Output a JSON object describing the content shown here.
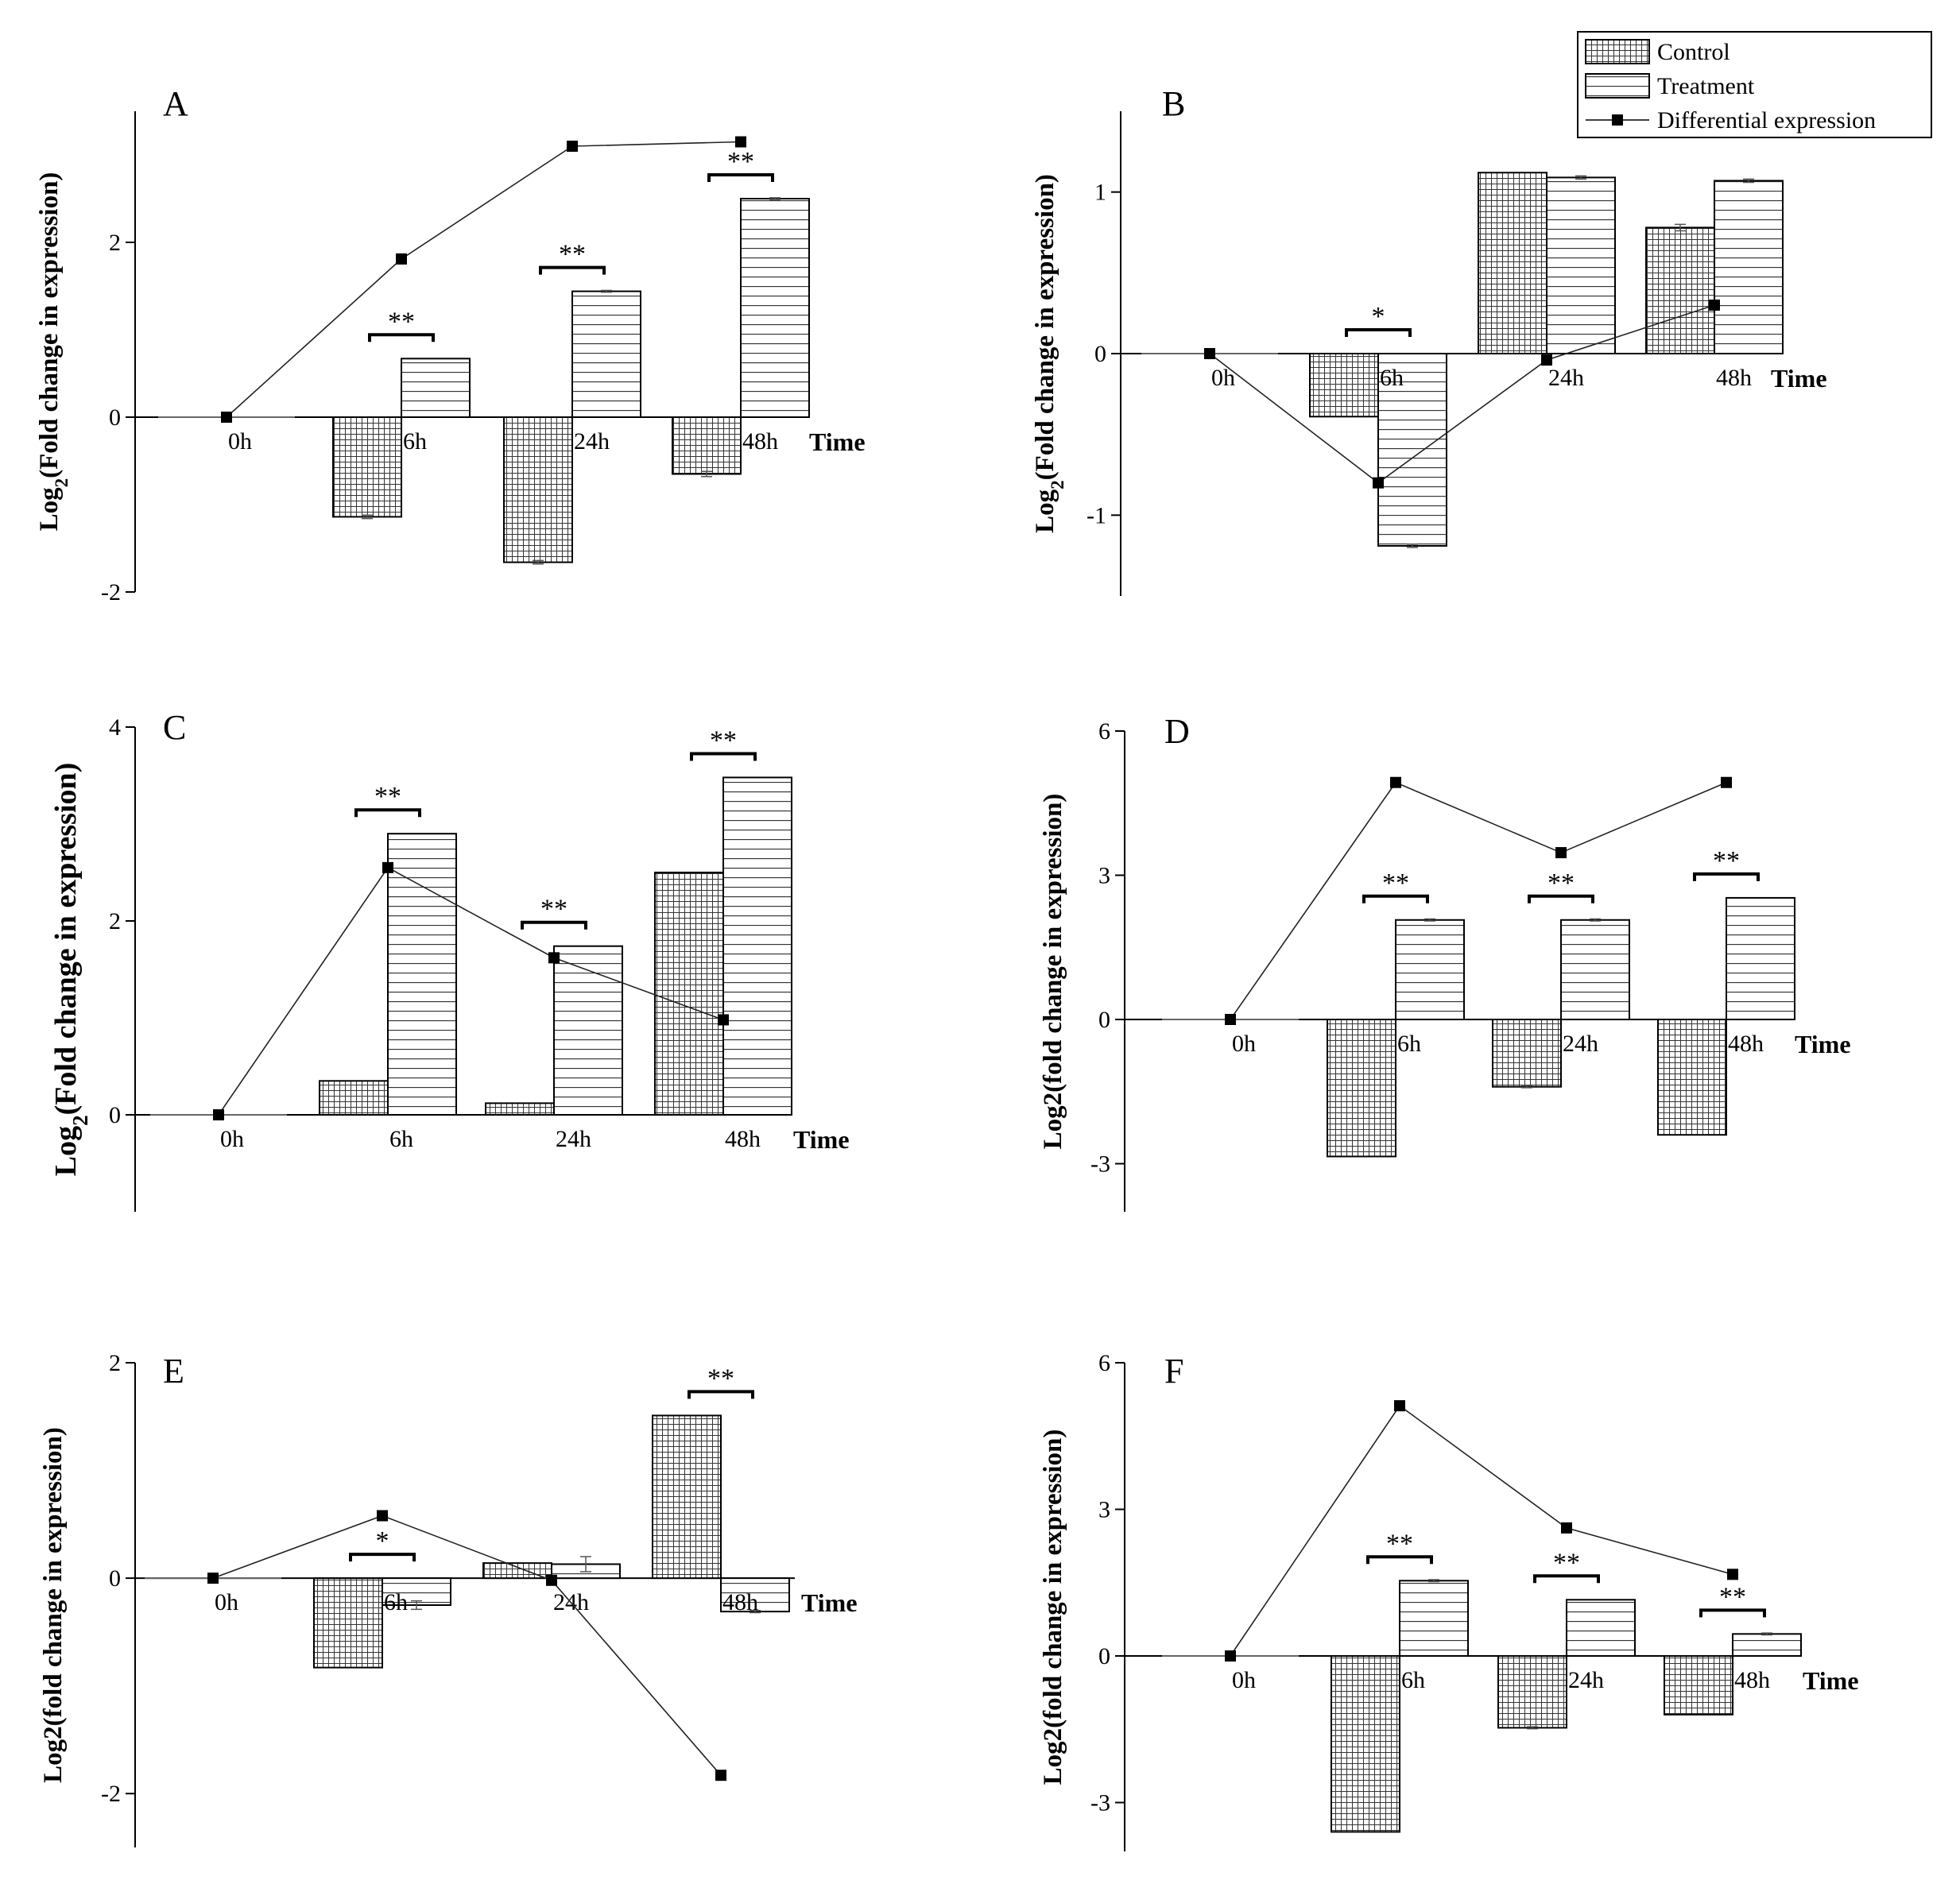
{
  "legend": {
    "items": [
      {
        "label": "Control",
        "kind": "grid-bar"
      },
      {
        "label": "Treatment",
        "kind": "hline-bar"
      },
      {
        "label": "Differential expression",
        "kind": "line-marker"
      }
    ]
  },
  "chart_data": [
    {
      "type": "bar",
      "panel": "A",
      "ylabel_main": "Log",
      "ylabel_sub": "2",
      "ylabel_rest": "(Fold change in expression)",
      "xlabel": "Time",
      "categories": [
        "0h",
        "6h",
        "24h",
        "48h"
      ],
      "ylim": [
        -2,
        3.5
      ],
      "yticks": [
        -2,
        0,
        2
      ],
      "series": [
        {
          "name": "Control",
          "values": [
            0,
            -1.14,
            -1.66,
            -0.65
          ],
          "errors": [
            0,
            0.02,
            0.02,
            0.03
          ]
        },
        {
          "name": "Treatment",
          "values": [
            0,
            0.67,
            1.44,
            2.5
          ],
          "errors": [
            0,
            0,
            0.01,
            0.01
          ]
        },
        {
          "name": "Differential expression",
          "values": [
            0,
            1.81,
            3.1,
            3.15
          ]
        }
      ],
      "significance": [
        "",
        "**",
        "**",
        "**"
      ]
    },
    {
      "type": "bar",
      "panel": "B",
      "ylabel_main": "Log",
      "ylabel_sub": "2",
      "ylabel_rest": "(Fold change in expression)",
      "xlabel": "Time",
      "categories": [
        "0h",
        "6h",
        "24h",
        "48h"
      ],
      "ylim": [
        -1.5,
        1.5
      ],
      "yticks": [
        -1,
        0,
        1
      ],
      "series": [
        {
          "name": "Control",
          "values": [
            0,
            -0.39,
            1.12,
            0.78
          ],
          "errors": [
            0,
            0,
            0,
            0.02
          ]
        },
        {
          "name": "Treatment",
          "values": [
            0,
            -1.19,
            1.09,
            1.07
          ],
          "errors": [
            0,
            0.01,
            0.01,
            0.01
          ]
        },
        {
          "name": "Differential expression",
          "values": [
            0,
            -0.8,
            -0.04,
            0.3
          ]
        }
      ],
      "significance": [
        "",
        "*",
        "",
        ""
      ]
    },
    {
      "type": "bar",
      "panel": "C",
      "ylabel_main": "Log",
      "ylabel_sub": "2",
      "ylabel_rest": "(Fold change in expression)",
      "xlabel": "Time",
      "categories": [
        "0h",
        "6h",
        "24h",
        "48h"
      ],
      "ylim": [
        -1,
        4
      ],
      "yticks": [
        0,
        2,
        4
      ],
      "series": [
        {
          "name": "Control",
          "values": [
            0,
            0.35,
            0.12,
            2.5
          ],
          "errors": [
            0,
            0,
            0,
            0
          ]
        },
        {
          "name": "Treatment",
          "values": [
            0,
            2.9,
            1.74,
            3.48
          ],
          "errors": [
            0,
            0,
            0,
            0
          ]
        },
        {
          "name": "Differential expression",
          "values": [
            0,
            2.55,
            1.62,
            0.98
          ]
        }
      ],
      "significance": [
        "",
        "**",
        "**",
        "**"
      ]
    },
    {
      "type": "bar",
      "panel": "D",
      "ylabel_main": "Log2(fold change in expression)",
      "ylabel_sub": "",
      "ylabel_rest": "",
      "xlabel": "Time",
      "categories": [
        "0h",
        "6h",
        "24h",
        "48h"
      ],
      "ylim": [
        -4,
        6
      ],
      "yticks": [
        -3,
        0,
        3,
        6
      ],
      "series": [
        {
          "name": "Control",
          "values": [
            0,
            -2.85,
            -1.4,
            -2.4
          ],
          "errors": [
            0,
            0,
            0.02,
            0
          ]
        },
        {
          "name": "Treatment",
          "values": [
            0,
            2.07,
            2.07,
            2.53
          ],
          "errors": [
            0,
            0.02,
            0.02,
            0
          ]
        },
        {
          "name": "Differential expression",
          "values": [
            0,
            4.93,
            3.47,
            4.93
          ]
        }
      ],
      "significance": [
        "",
        "**",
        "**",
        "**"
      ]
    },
    {
      "type": "bar",
      "panel": "E",
      "ylabel_main": "Log2(fold change in expression)",
      "ylabel_sub": "",
      "ylabel_rest": "",
      "xlabel": "Time",
      "categories": [
        "0h",
        "6h",
        "24h",
        "48h"
      ],
      "ylim": [
        -2.5,
        2
      ],
      "yticks": [
        -2,
        0,
        2
      ],
      "series": [
        {
          "name": "Control",
          "values": [
            0,
            -0.83,
            0.14,
            1.51
          ],
          "errors": [
            0,
            0,
            0,
            0
          ]
        },
        {
          "name": "Treatment",
          "values": [
            0,
            -0.25,
            0.13,
            -0.31
          ],
          "errors": [
            0,
            0.04,
            0.07,
            0.01
          ]
        },
        {
          "name": "Differential expression",
          "values": [
            0,
            0.58,
            -0.02,
            -1.83
          ]
        }
      ],
      "significance": [
        "",
        "*",
        "",
        "**"
      ]
    },
    {
      "type": "bar",
      "panel": "F",
      "ylabel_main": "Log2(fold change in expression)",
      "ylabel_sub": "",
      "ylabel_rest": "",
      "xlabel": "Time",
      "categories": [
        "0h",
        "6h",
        "24h",
        "48h"
      ],
      "ylim": [
        -4,
        6
      ],
      "yticks": [
        -3,
        0,
        3,
        6
      ],
      "series": [
        {
          "name": "Control",
          "values": [
            0,
            -3.6,
            -1.47,
            -1.2
          ],
          "errors": [
            0,
            0,
            0.02,
            0
          ]
        },
        {
          "name": "Treatment",
          "values": [
            0,
            1.54,
            1.15,
            0.45
          ],
          "errors": [
            0,
            0.02,
            0,
            0.02
          ]
        },
        {
          "name": "Differential expression",
          "values": [
            0,
            5.12,
            2.62,
            1.67
          ]
        }
      ],
      "significance": [
        "",
        "**",
        "**",
        "**"
      ]
    }
  ]
}
